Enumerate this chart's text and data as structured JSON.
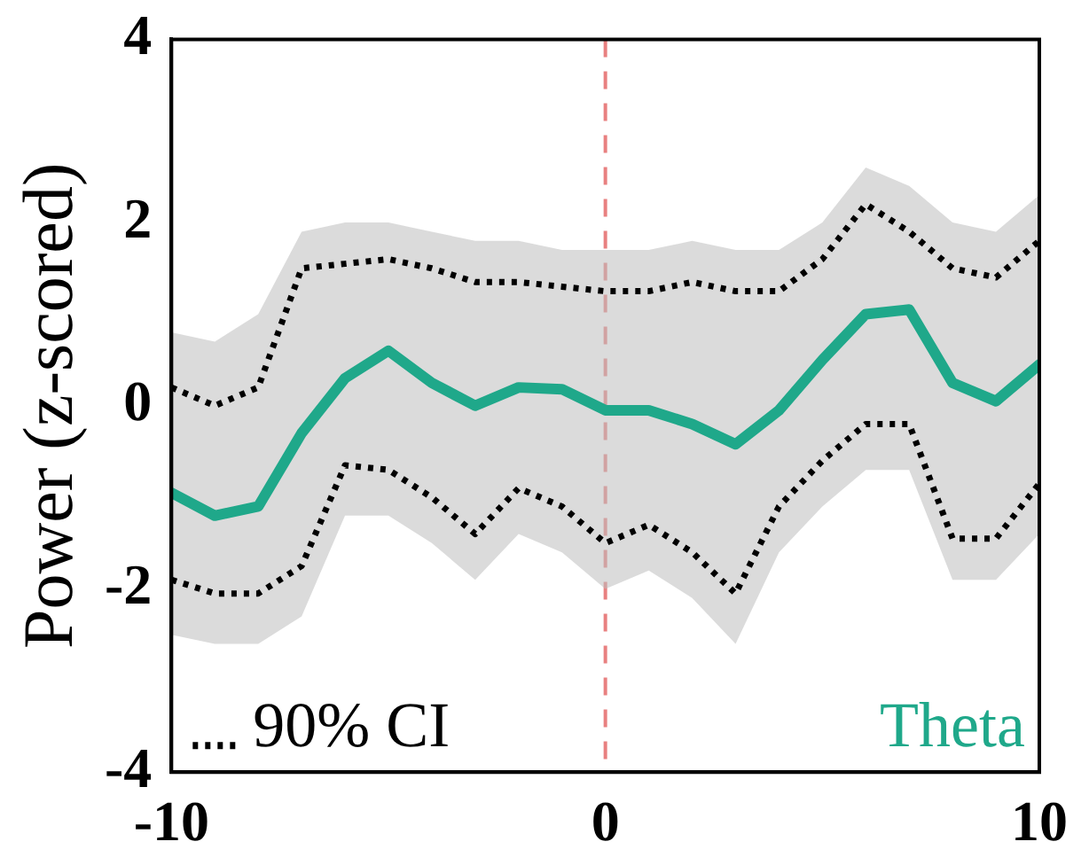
{
  "chart_data": {
    "type": "line",
    "ylabel": "Power (z-scored)",
    "x": [
      -10,
      -9,
      -8,
      -7,
      -6,
      -5,
      -4,
      -3,
      -2,
      -1,
      0,
      1,
      2,
      3,
      4,
      5,
      6,
      7,
      8,
      9,
      10
    ],
    "series": [
      {
        "name": "Theta",
        "color": "#1fa88a",
        "values": [
          -0.95,
          -1.2,
          -1.1,
          -0.3,
          0.3,
          0.6,
          0.25,
          0,
          0.2,
          0.18,
          -0.05,
          -0.05,
          -0.2,
          -0.42,
          -0.05,
          0.5,
          1.0,
          1.05,
          0.25,
          0.05,
          0.45
        ],
        "lower": [
          -2.5,
          -2.6,
          -2.6,
          -2.3,
          -1.2,
          -1.2,
          -1.5,
          -1.9,
          -1.4,
          -1.6,
          -2.0,
          -1.8,
          -2.1,
          -2.6,
          -1.6,
          -1.1,
          -0.7,
          -0.7,
          -1.9,
          -1.9,
          -1.4
        ],
        "upper": [
          0.8,
          0.7,
          1.0,
          1.9,
          2.0,
          2.0,
          1.9,
          1.8,
          1.8,
          1.7,
          1.7,
          1.7,
          1.8,
          1.7,
          1.7,
          2.0,
          2.6,
          2.4,
          2.0,
          1.9,
          2.3
        ]
      },
      {
        "name": "90% CI",
        "color": "#000000",
        "line_style": "dotted",
        "values": [
          0.2,
          0.0,
          0.2,
          1.5,
          1.55,
          1.6,
          1.5,
          1.35,
          1.35,
          1.3,
          1.25,
          1.25,
          1.35,
          1.25,
          1.25,
          1.6,
          2.2,
          1.9,
          1.5,
          1.4,
          1.8
        ]
      },
      {
        "color": "#000000",
        "line_style": "dotted",
        "values": [
          -1.9,
          -2.05,
          -2.05,
          -1.75,
          -0.65,
          -0.7,
          -1.0,
          -1.4,
          -0.9,
          -1.1,
          -1.5,
          -1.3,
          -1.6,
          -2.05,
          -1.1,
          -0.6,
          -0.2,
          -0.2,
          -1.45,
          -1.45,
          -0.85
        ]
      }
    ],
    "xlim": [
      -10,
      10
    ],
    "xticks": [
      -10,
      0,
      10
    ],
    "ylim": [
      -4,
      4
    ],
    "yticks": [
      -4,
      -2,
      0,
      2,
      4
    ],
    "ref_lines": [
      {
        "axis": "x",
        "value": 0,
        "color": "#e88080",
        "line_style": "dashed"
      }
    ],
    "legend": "bottom left",
    "grid": false,
    "marker": "none"
  }
}
